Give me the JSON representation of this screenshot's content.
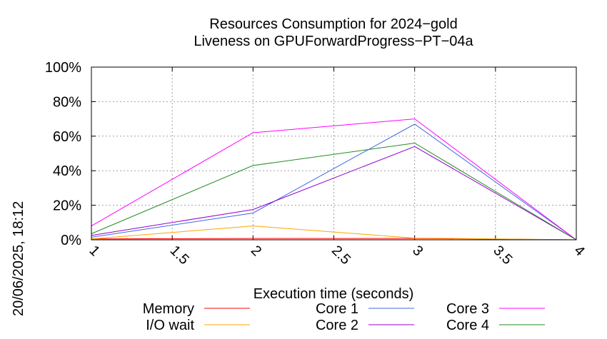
{
  "chart_data": {
    "type": "line",
    "title": "Resources Consumption for 2024−gold",
    "subtitle": "Liveness on GPUForwardProgress−PT−04a",
    "xlabel": "Execution time (seconds)",
    "ylabel": "",
    "xlim": [
      1,
      4
    ],
    "ylim": [
      0,
      100
    ],
    "x_ticks": [
      1,
      1.5,
      2,
      2.5,
      3,
      3.5,
      4
    ],
    "x_tick_labels": [
      "1",
      "1.5",
      "2",
      "2.5",
      "3",
      "3.5",
      "4"
    ],
    "y_ticks": [
      0,
      20,
      40,
      60,
      80,
      100
    ],
    "y_tick_labels": [
      "0%",
      "20%",
      "40%",
      "60%",
      "80%",
      "100%"
    ],
    "grid": true,
    "legend_position": "bottom",
    "timestamp": "20/06/2025, 18:12",
    "x": [
      1,
      2,
      3,
      4
    ],
    "series": [
      {
        "name": "Memory",
        "color": "#ff0000",
        "values": [
          0.5,
          0.8,
          0.8,
          0
        ]
      },
      {
        "name": "I/O wait",
        "color": "#ffa500",
        "values": [
          0.5,
          8,
          1,
          0
        ]
      },
      {
        "name": "Core 1",
        "color": "#4169e1",
        "values": [
          1.5,
          15.5,
          67,
          0
        ]
      },
      {
        "name": "Core 2",
        "color": "#9400d3",
        "values": [
          2.5,
          17.5,
          54,
          0
        ]
      },
      {
        "name": "Core 3",
        "color": "#ff00ff",
        "values": [
          8,
          62,
          70,
          0
        ]
      },
      {
        "name": "Core 4",
        "color": "#228b22",
        "values": [
          3.5,
          43,
          56,
          0
        ]
      }
    ]
  }
}
